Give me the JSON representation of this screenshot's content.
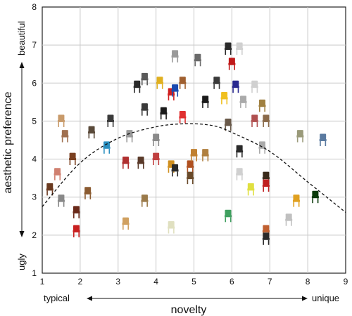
{
  "chart_data": {
    "type": "scatter",
    "xlabel": "novelty",
    "ylabel": "aesthetic preference",
    "xlim": [
      1,
      9
    ],
    "ylim": [
      1,
      8
    ],
    "x_ticks": [
      "1",
      "2",
      "3",
      "4",
      "5",
      "6",
      "7",
      "8",
      "9"
    ],
    "y_ticks": [
      "1",
      "2",
      "3",
      "4",
      "5",
      "6",
      "7",
      "8"
    ],
    "x_annotations": {
      "low": "typical",
      "high": "unique"
    },
    "y_annotations": {
      "low": "ugly",
      "high": "beautiful"
    },
    "grid": true,
    "trend": {
      "style": "dashed",
      "shape": "inverted-u",
      "x": [
        1,
        2,
        3,
        4,
        4.8,
        5.5,
        6,
        7,
        8,
        9
      ],
      "y": [
        2.75,
        3.9,
        4.55,
        4.85,
        4.93,
        4.88,
        4.7,
        4.2,
        3.4,
        2.6
      ]
    },
    "points": [
      {
        "x": 1.5,
        "y": 5.0,
        "color": "#c89a6a"
      },
      {
        "x": 1.6,
        "y": 4.6,
        "color": "#a07050"
      },
      {
        "x": 2.3,
        "y": 4.7,
        "color": "#5a4a3a"
      },
      {
        "x": 2.8,
        "y": 5.0,
        "color": "#3a3a3a"
      },
      {
        "x": 2.7,
        "y": 4.3,
        "color": "#2a8fc0"
      },
      {
        "x": 1.8,
        "y": 4.0,
        "color": "#7a4020"
      },
      {
        "x": 1.4,
        "y": 3.6,
        "color": "#d08070"
      },
      {
        "x": 1.2,
        "y": 3.2,
        "color": "#6a3a20"
      },
      {
        "x": 1.5,
        "y": 2.9,
        "color": "#888888"
      },
      {
        "x": 2.2,
        "y": 3.1,
        "color": "#8a5a30"
      },
      {
        "x": 1.9,
        "y": 2.6,
        "color": "#6a2a1a"
      },
      {
        "x": 1.9,
        "y": 2.1,
        "color": "#c82020"
      },
      {
        "x": 3.2,
        "y": 3.9,
        "color": "#b03030"
      },
      {
        "x": 3.6,
        "y": 3.9,
        "color": "#5a3a2a"
      },
      {
        "x": 3.3,
        "y": 4.6,
        "color": "#9a9a9a"
      },
      {
        "x": 3.7,
        "y": 5.3,
        "color": "#3a3a3a"
      },
      {
        "x": 3.5,
        "y": 5.9,
        "color": "#2a2a2a"
      },
      {
        "x": 3.7,
        "y": 6.1,
        "color": "#5a5a5a"
      },
      {
        "x": 4.1,
        "y": 6.0,
        "color": "#e0b020"
      },
      {
        "x": 4.4,
        "y": 5.7,
        "color": "#d02020"
      },
      {
        "x": 4.2,
        "y": 5.2,
        "color": "#1a1a1a"
      },
      {
        "x": 4.0,
        "y": 4.5,
        "color": "#8a8a8a"
      },
      {
        "x": 4.0,
        "y": 4.0,
        "color": "#c04040"
      },
      {
        "x": 4.4,
        "y": 3.8,
        "color": "#d09020"
      },
      {
        "x": 4.5,
        "y": 3.7,
        "color": "#2a2a2a"
      },
      {
        "x": 4.9,
        "y": 3.8,
        "color": "#b05020"
      },
      {
        "x": 5.0,
        "y": 4.1,
        "color": "#c08030"
      },
      {
        "x": 4.9,
        "y": 3.5,
        "color": "#6a4a2a"
      },
      {
        "x": 5.3,
        "y": 4.1,
        "color": "#b08040"
      },
      {
        "x": 4.5,
        "y": 5.8,
        "color": "#1a4ab0"
      },
      {
        "x": 4.7,
        "y": 6.0,
        "color": "#a06030"
      },
      {
        "x": 5.1,
        "y": 6.6,
        "color": "#6a6a6a"
      },
      {
        "x": 4.5,
        "y": 6.7,
        "color": "#9a9a9a"
      },
      {
        "x": 4.7,
        "y": 5.1,
        "color": "#e03030"
      },
      {
        "x": 5.3,
        "y": 5.5,
        "color": "#1a1a1a"
      },
      {
        "x": 5.6,
        "y": 6.0,
        "color": "#3a3a3a"
      },
      {
        "x": 5.9,
        "y": 6.9,
        "color": "#2a2a2a"
      },
      {
        "x": 6.0,
        "y": 6.5,
        "color": "#c01818"
      },
      {
        "x": 6.2,
        "y": 6.9,
        "color": "#d0d0d0"
      },
      {
        "x": 5.8,
        "y": 5.6,
        "color": "#f0c020"
      },
      {
        "x": 6.1,
        "y": 5.9,
        "color": "#2a2a90"
      },
      {
        "x": 6.3,
        "y": 5.5,
        "color": "#aaaaaa"
      },
      {
        "x": 6.6,
        "y": 5.9,
        "color": "#d0d0d0"
      },
      {
        "x": 6.8,
        "y": 5.4,
        "color": "#a08040"
      },
      {
        "x": 5.9,
        "y": 4.9,
        "color": "#6a5a4a"
      },
      {
        "x": 6.6,
        "y": 5.0,
        "color": "#b05050"
      },
      {
        "x": 6.9,
        "y": 5.0,
        "color": "#8a6a4a"
      },
      {
        "x": 6.2,
        "y": 4.2,
        "color": "#2a2a2a"
      },
      {
        "x": 6.8,
        "y": 4.3,
        "color": "#aaaaaa"
      },
      {
        "x": 6.2,
        "y": 3.6,
        "color": "#d0d0d0"
      },
      {
        "x": 6.9,
        "y": 3.5,
        "color": "#3a2a1a"
      },
      {
        "x": 6.5,
        "y": 3.2,
        "color": "#e0e040"
      },
      {
        "x": 6.9,
        "y": 3.3,
        "color": "#c02020"
      },
      {
        "x": 7.8,
        "y": 4.6,
        "color": "#9a9a7a"
      },
      {
        "x": 8.4,
        "y": 4.5,
        "color": "#5a7aa0"
      },
      {
        "x": 7.7,
        "y": 2.9,
        "color": "#e0a020"
      },
      {
        "x": 8.2,
        "y": 3.0,
        "color": "#0a3a0a"
      },
      {
        "x": 7.5,
        "y": 2.4,
        "color": "#c0c0c0"
      },
      {
        "x": 5.9,
        "y": 2.5,
        "color": "#40a060"
      },
      {
        "x": 4.4,
        "y": 2.2,
        "color": "#e0e0c0"
      },
      {
        "x": 3.2,
        "y": 2.3,
        "color": "#d0a060"
      },
      {
        "x": 3.7,
        "y": 2.9,
        "color": "#9a7a4a"
      },
      {
        "x": 6.9,
        "y": 2.1,
        "color": "#c06030"
      },
      {
        "x": 6.9,
        "y": 1.9,
        "color": "#2a2a2a"
      }
    ]
  }
}
